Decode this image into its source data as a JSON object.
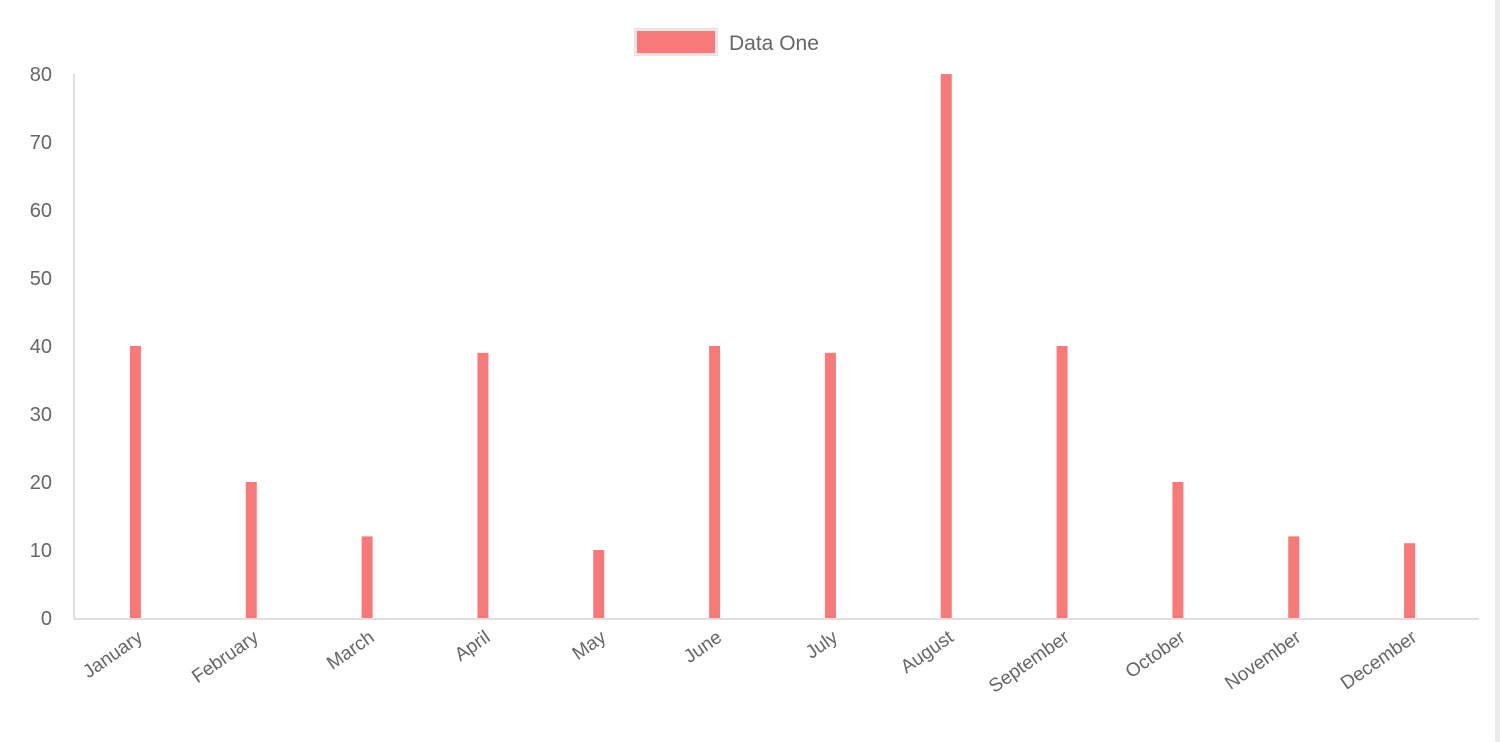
{
  "chart_data": {
    "type": "bar",
    "categories": [
      "January",
      "February",
      "March",
      "April",
      "May",
      "June",
      "July",
      "August",
      "September",
      "October",
      "November",
      "December"
    ],
    "series": [
      {
        "name": "Data One",
        "values": [
          40,
          20,
          12,
          39,
          10,
          40,
          39,
          80,
          40,
          20,
          12,
          11
        ],
        "color": "#f87979"
      }
    ],
    "ylim": [
      0,
      80
    ],
    "yticks": [
      0,
      10,
      20,
      30,
      40,
      50,
      60,
      70,
      80
    ],
    "grid": false,
    "legend": "top-center",
    "xlabel": "",
    "ylabel": ""
  }
}
